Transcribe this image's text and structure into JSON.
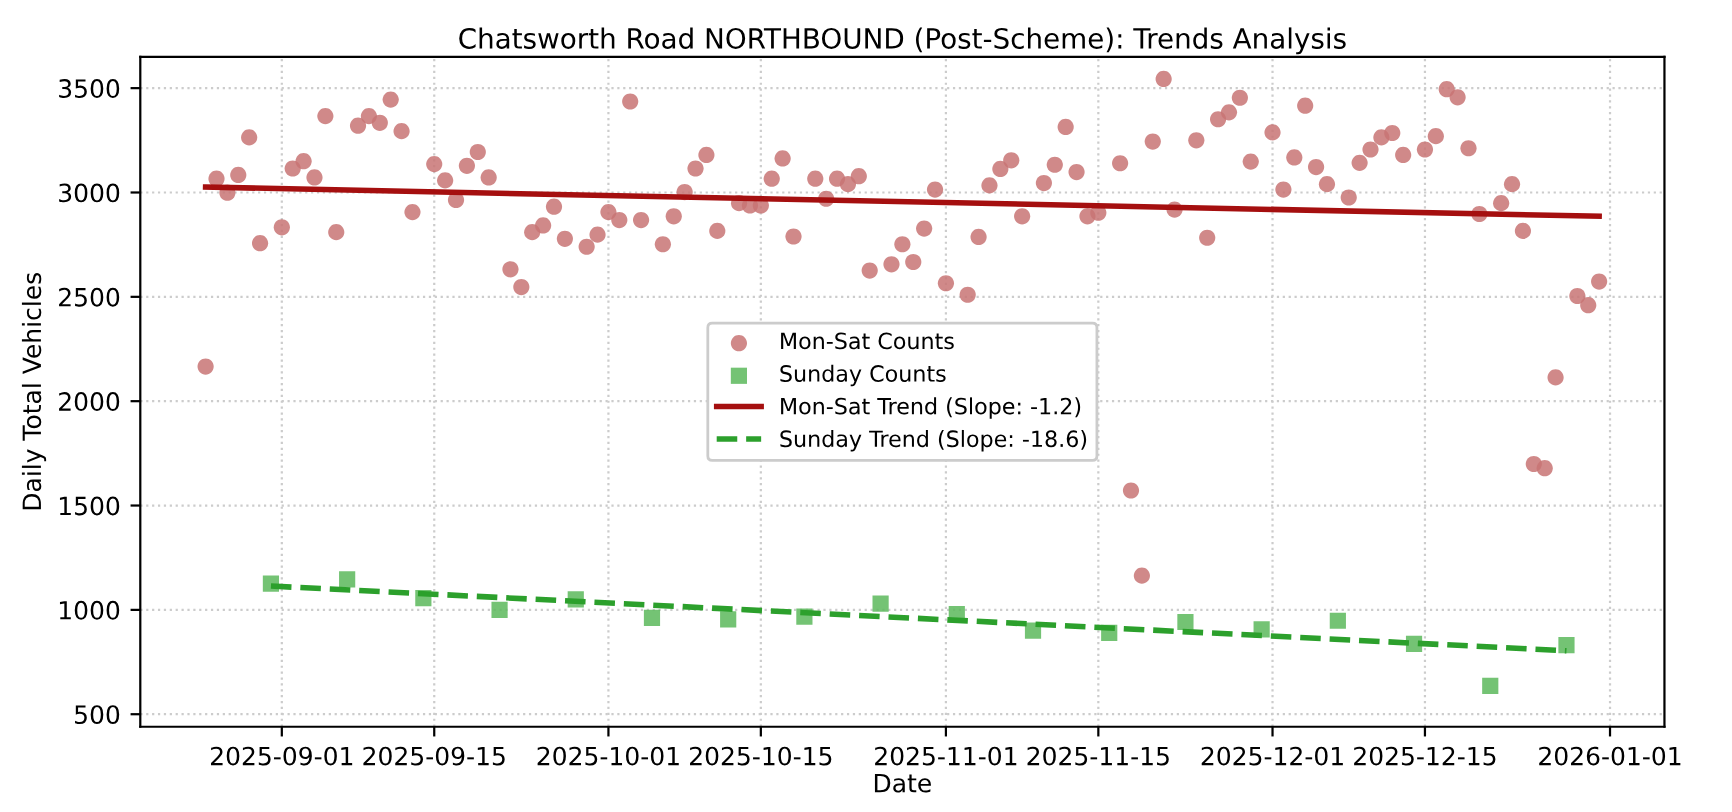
{
  "chart_data": {
    "type": "scatter",
    "title": "Chatsworth Road NORTHBOUND (Post-Scheme): Trends Analysis",
    "xlabel": "Date",
    "ylabel": "Daily Total Vehicles",
    "xlim": [
      "2025-08-19",
      "2026-01-06"
    ],
    "ylim": [
      440,
      3650
    ],
    "xticks": [
      "2025-09-01",
      "2025-09-15",
      "2025-10-01",
      "2025-10-15",
      "2025-11-01",
      "2025-11-15",
      "2025-12-01",
      "2025-12-15",
      "2026-01-01"
    ],
    "yticks": [
      500,
      1000,
      1500,
      2000,
      2500,
      3000,
      3500
    ],
    "grid": true,
    "legend": "center",
    "series": [
      {
        "name": "Mon-Sat Counts",
        "marker": "circle",
        "color": "#c87474",
        "x": [
          "2025-08-25",
          "2025-08-26",
          "2025-08-27",
          "2025-08-28",
          "2025-08-29",
          "2025-08-30",
          "2025-09-01",
          "2025-09-02",
          "2025-09-03",
          "2025-09-04",
          "2025-09-05",
          "2025-09-06",
          "2025-09-08",
          "2025-09-09",
          "2025-09-10",
          "2025-09-11",
          "2025-09-12",
          "2025-09-13",
          "2025-09-15",
          "2025-09-16",
          "2025-09-17",
          "2025-09-18",
          "2025-09-19",
          "2025-09-20",
          "2025-09-22",
          "2025-09-23",
          "2025-09-24",
          "2025-09-25",
          "2025-09-26",
          "2025-09-27",
          "2025-09-29",
          "2025-09-30",
          "2025-10-01",
          "2025-10-02",
          "2025-10-03",
          "2025-10-04",
          "2025-10-06",
          "2025-10-07",
          "2025-10-08",
          "2025-10-09",
          "2025-10-10",
          "2025-10-11",
          "2025-10-13",
          "2025-10-14",
          "2025-10-15",
          "2025-10-16",
          "2025-10-17",
          "2025-10-18",
          "2025-10-20",
          "2025-10-21",
          "2025-10-22",
          "2025-10-23",
          "2025-10-24",
          "2025-10-25",
          "2025-10-27",
          "2025-10-28",
          "2025-10-29",
          "2025-10-30",
          "2025-10-31",
          "2025-11-01",
          "2025-11-03",
          "2025-11-04",
          "2025-11-05",
          "2025-11-06",
          "2025-11-07",
          "2025-11-08",
          "2025-11-10",
          "2025-11-11",
          "2025-11-12",
          "2025-11-13",
          "2025-11-14",
          "2025-11-15",
          "2025-11-17",
          "2025-11-18",
          "2025-11-19",
          "2025-11-20",
          "2025-11-21",
          "2025-11-22",
          "2025-11-24",
          "2025-11-25",
          "2025-11-26",
          "2025-11-27",
          "2025-11-28",
          "2025-11-29",
          "2025-12-01",
          "2025-12-02",
          "2025-12-03",
          "2025-12-04",
          "2025-12-05",
          "2025-12-06",
          "2025-12-08",
          "2025-12-09",
          "2025-12-10",
          "2025-12-11",
          "2025-12-12",
          "2025-12-13",
          "2025-12-15",
          "2025-12-16",
          "2025-12-17",
          "2025-12-18",
          "2025-12-19",
          "2025-12-20",
          "2025-12-22",
          "2025-12-23",
          "2025-12-24",
          "2025-12-25",
          "2025-12-26",
          "2025-12-27",
          "2025-12-29",
          "2025-12-30",
          "2025-12-31"
        ],
        "values": [
          2166,
          3066,
          2999,
          3084,
          3264,
          2757,
          2833,
          3115,
          3150,
          3072,
          3366,
          2810,
          3320,
          3366,
          3334,
          3445,
          3294,
          2906,
          3136,
          3058,
          2964,
          3128,
          3194,
          3072,
          2632,
          2547,
          2810,
          2842,
          2932,
          2778,
          2740,
          2798,
          2906,
          2868,
          3436,
          2868,
          2752,
          2886,
          3002,
          3115,
          3180,
          2816,
          2949,
          2938,
          2938,
          3066,
          3163,
          2789,
          3066,
          2970,
          3066,
          3040,
          3078,
          2626,
          2656,
          2752,
          2667,
          2827,
          3014,
          2565,
          2510,
          2787,
          3034,
          3113,
          3154,
          2886,
          3045,
          3133,
          3314,
          3098,
          2886,
          2903,
          3140,
          1572,
          1164,
          3244,
          3544,
          2918,
          3250,
          2783,
          3351,
          3384,
          3454,
          3148,
          3288,
          3014,
          3168,
          3416,
          3122,
          3040,
          2976,
          3142,
          3206,
          3264,
          3285,
          3180,
          3206,
          3270,
          3495,
          3456,
          3212,
          2897,
          2949,
          3040,
          2816,
          1699,
          1679,
          2114,
          2504,
          2460,
          2573
        ]
      },
      {
        "name": "Sunday Counts",
        "marker": "square",
        "color": "#5cb85c",
        "x": [
          "2025-08-31",
          "2025-09-07",
          "2025-09-14",
          "2025-09-21",
          "2025-09-28",
          "2025-10-05",
          "2025-10-12",
          "2025-10-19",
          "2025-10-26",
          "2025-11-02",
          "2025-11-09",
          "2025-11-16",
          "2025-11-23",
          "2025-11-30",
          "2025-12-07",
          "2025-12-14",
          "2025-12-21",
          "2025-12-28"
        ],
        "values": [
          1126,
          1146,
          1056,
          1000,
          1050,
          962,
          954,
          968,
          1030,
          980,
          901,
          890,
          942,
          907,
          948,
          837,
          636,
          831
        ]
      },
      {
        "name": "Mon-Sat Trend (Slope: -1.2)",
        "type": "line",
        "line_style": "solid",
        "color": "#a50f0f",
        "x": [
          "2025-08-25",
          "2025-12-31"
        ],
        "values": [
          3026,
          2886
        ]
      },
      {
        "name": "Sunday Trend (Slope: -18.6)",
        "type": "line",
        "line_style": "dashed",
        "color": "#2ca02c",
        "x": [
          "2025-08-31",
          "2025-12-28"
        ],
        "values": [
          1114,
          804
        ]
      }
    ]
  }
}
